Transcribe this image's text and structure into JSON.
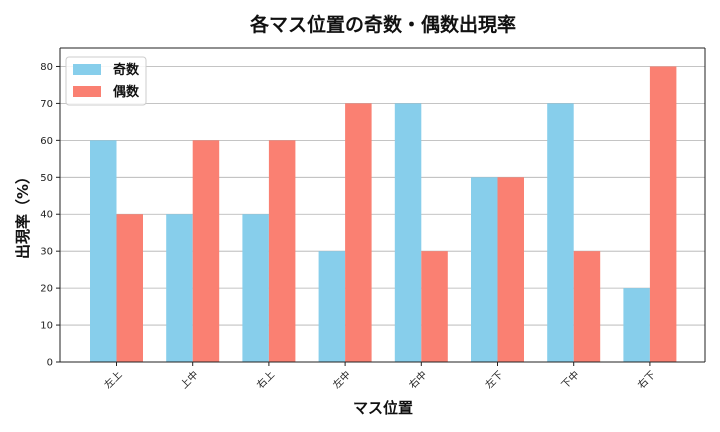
{
  "chart_data": {
    "type": "bar",
    "title": "各マス位置の奇数・偶数出現率",
    "xlabel": "マス位置",
    "ylabel": "出現率（%）",
    "categories": [
      "左上",
      "上中",
      "右上",
      "左中",
      "右中",
      "左下",
      "下中",
      "右下"
    ],
    "series": [
      {
        "name": "奇数",
        "color": "#87CEEB",
        "values": [
          60,
          40,
          40,
          30,
          70,
          50,
          70,
          20
        ]
      },
      {
        "name": "偶数",
        "color": "#FA8072",
        "values": [
          40,
          60,
          60,
          70,
          30,
          50,
          30,
          80
        ]
      }
    ],
    "ylim": [
      0,
      85
    ],
    "yticks": [
      0,
      10,
      20,
      30,
      40,
      50,
      60,
      70,
      80
    ],
    "grid": "y",
    "legend_position": "top-left"
  }
}
